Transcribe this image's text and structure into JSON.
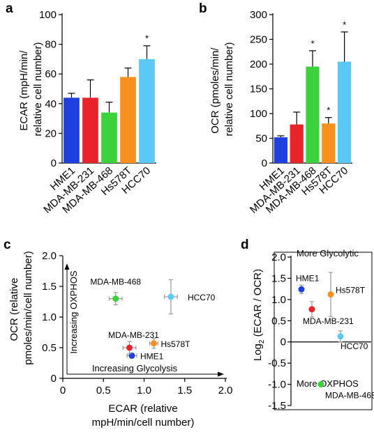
{
  "figure": {
    "background": "#ffffff"
  },
  "chart_data": [
    {
      "panel": "a",
      "type": "bar",
      "ylabel_lines": [
        "ECAR (mpH/min/",
        "relative cell number)"
      ],
      "ylim": [
        0,
        100
      ],
      "yticks": [
        0,
        20,
        40,
        60,
        80,
        100
      ],
      "categories": [
        "HME1",
        "MDA-MB-231",
        "MDA-MB-468",
        "Hs578T",
        "HCC70"
      ],
      "values": [
        44,
        44,
        34,
        58,
        70
      ],
      "errors": [
        3,
        12,
        7,
        6,
        9
      ],
      "colors": [
        "#1f3fe0",
        "#e8242a",
        "#3cd23c",
        "#f7901e",
        "#5bc8f5"
      ],
      "significance": [
        "",
        "",
        "",
        "",
        "*"
      ]
    },
    {
      "panel": "b",
      "type": "bar",
      "ylabel_lines": [
        "OCR (pmoles/min/",
        "relative cell number)"
      ],
      "ylim": [
        0,
        300
      ],
      "yticks": [
        0,
        50,
        100,
        150,
        200,
        250,
        300
      ],
      "categories": [
        "HME1",
        "MDA-MB-231",
        "MDA-MB-468",
        "Hs578T",
        "HCC70"
      ],
      "values": [
        52,
        78,
        195,
        80,
        205
      ],
      "errors": [
        3,
        25,
        32,
        12,
        60
      ],
      "colors": [
        "#1f3fe0",
        "#e8242a",
        "#3cd23c",
        "#f7901e",
        "#5bc8f5"
      ],
      "significance": [
        "",
        "",
        "*",
        "*",
        "*"
      ]
    },
    {
      "panel": "c",
      "type": "scatter",
      "xlabel_lines": [
        "ECAR (relative",
        "mpH/min/cell number)"
      ],
      "ylabel_lines": [
        "OCR (relative",
        "pmoles/min/cell number)"
      ],
      "xlim": [
        0,
        2
      ],
      "ylim": [
        0,
        2
      ],
      "xticks": [
        "0",
        "0.5",
        "1.0",
        "1.5",
        "2.0"
      ],
      "yticks": [
        "0",
        "0.5",
        "1.0",
        "1.5",
        "2.0"
      ],
      "annotations": {
        "y_arrow": "Increasing OXPHOS",
        "x_arrow": "Increasing Glycolysis"
      },
      "points": [
        {
          "label": "HME1",
          "x": 0.85,
          "y": 0.37,
          "xerr": 0.06,
          "yerr": 0.04,
          "color": "#1f3fe0"
        },
        {
          "label": "MDA-MB-231",
          "x": 0.82,
          "y": 0.5,
          "xerr": 0.08,
          "yerr": 0.1,
          "color": "#e8242a"
        },
        {
          "label": "MDA-MB-468",
          "x": 0.65,
          "y": 1.3,
          "xerr": 0.08,
          "yerr": 0.1,
          "color": "#3cd23c"
        },
        {
          "label": "Hs578T",
          "x": 1.12,
          "y": 0.57,
          "xerr": 0.05,
          "yerr": 0.08,
          "color": "#f7901e"
        },
        {
          "label": "HCC70",
          "x": 1.33,
          "y": 1.33,
          "xerr": 0.08,
          "yerr": 0.28,
          "color": "#5bc8f5"
        }
      ]
    },
    {
      "panel": "d",
      "type": "scatter",
      "ylabel_main": "Log",
      "ylabel_sub": "2",
      "ylabel_rest": " (ECAR / OCR)",
      "ylim": [
        -1.5,
        2.0
      ],
      "yticks": [
        "2.0",
        "1.5",
        "1.0",
        "0.5",
        "0",
        "-0.5",
        "-1.0",
        "-1.5"
      ],
      "annotations": {
        "top": "More Glycolytic",
        "bottom": "More OXPHOS"
      },
      "points": [
        {
          "label": "HME1",
          "y": 1.24,
          "yerr": 0.1,
          "color": "#1f3fe0"
        },
        {
          "label": "MDA-MB-231",
          "y": 0.77,
          "yerr": 0.18,
          "color": "#e8242a"
        },
        {
          "label": "Hs578T",
          "y": 1.12,
          "yerr": 0.52,
          "color": "#f7901e"
        },
        {
          "label": "HCC70",
          "y": 0.13,
          "yerr": 0.13,
          "color": "#5bc8f5"
        },
        {
          "label": "MDA-MB-468",
          "y": -1.0,
          "yerr": 0.0,
          "color": "#3cd23c"
        }
      ]
    }
  ],
  "panel_letters": [
    "a",
    "b",
    "c",
    "d"
  ]
}
